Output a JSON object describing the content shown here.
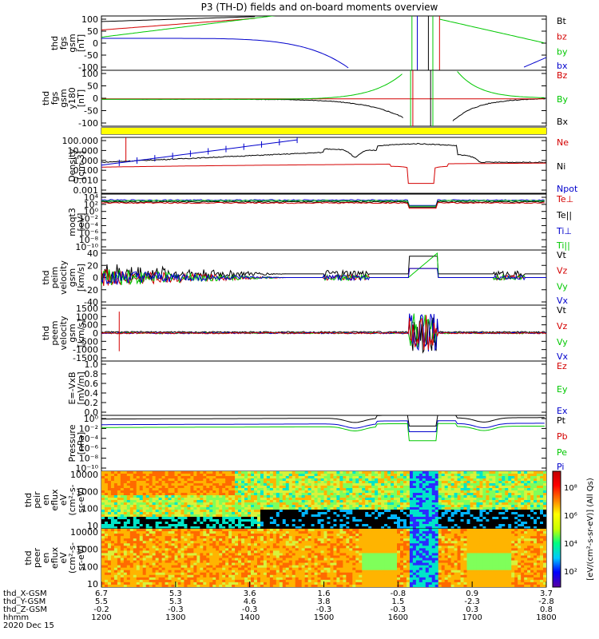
{
  "title": "P3 (TH-D) fields and on-board moments overview",
  "colors": {
    "black": "#000000",
    "red": "#d40000",
    "green": "#00c800",
    "blue": "#0000cc",
    "yellow": "#ffff00"
  },
  "chart_data": [
    {
      "type": "line",
      "panel_id": "fgs",
      "ylabel": [
        "thd",
        "fgs",
        "gsm",
        "[nT]"
      ],
      "yticks": [
        "100",
        "50",
        "0",
        "-50",
        "-100"
      ],
      "ylim": [
        -100,
        100
      ],
      "legend": [
        {
          "label": "Bt",
          "color": "#000000"
        },
        {
          "label": "bz",
          "color": "#d40000"
        },
        {
          "label": "by",
          "color": "#00c800"
        },
        {
          "label": "bx",
          "color": "#0000cc"
        }
      ]
    },
    {
      "type": "line",
      "panel_id": "fgs_y180",
      "ylabel": [
        "thd",
        "fgs",
        "gsm",
        "y180",
        "[nT]"
      ],
      "yticks": [
        "100",
        "50",
        "0",
        "-50",
        "-100"
      ],
      "ylim": [
        -120,
        120
      ],
      "legend": [
        {
          "label": "Bz",
          "color": "#d40000"
        },
        {
          "label": "By",
          "color": "#00c800"
        },
        {
          "label": "Bx",
          "color": "#000000"
        }
      ]
    },
    {
      "type": "bar",
      "panel_id": "mode_bar",
      "color": "#ffff00"
    },
    {
      "type": "line",
      "panel_id": "density",
      "ylabel": [
        "Density",
        "[cm-3]"
      ],
      "yticks": [
        "100.000",
        "10.000",
        "1.000",
        "0.100",
        "0.010",
        "0.001"
      ],
      "yscale": "log",
      "legend": [
        {
          "label": "Ne",
          "color": "#d40000"
        },
        {
          "label": "Ni",
          "color": "#000000"
        },
        {
          "label": "Npot",
          "color": "#0000cc"
        }
      ]
    },
    {
      "type": "line",
      "panel_id": "temperature",
      "ylabel": [
        "moqt3",
        "[eV]"
      ],
      "yticks": [
        "10⁴",
        "10²",
        "10⁰",
        "10⁻²",
        "10⁻⁴",
        "10⁻⁶",
        "10⁻⁸",
        "10⁻¹⁰"
      ],
      "yscale": "log",
      "legend": [
        {
          "label": "Te⊥",
          "color": "#d40000"
        },
        {
          "label": "Te||",
          "color": "#000000"
        },
        {
          "label": "Ti⊥",
          "color": "#0000cc"
        },
        {
          "label": "Ti||",
          "color": "#00c800"
        }
      ]
    },
    {
      "type": "line",
      "panel_id": "peim_velocity",
      "ylabel": [
        "thd",
        "peim",
        "velocity",
        "gsm",
        "[km/s]"
      ],
      "yticks": [
        "40",
        "20",
        "0",
        "-20",
        "-40"
      ],
      "ylim": [
        -40,
        40
      ],
      "legend": [
        {
          "label": "Vt",
          "color": "#000000"
        },
        {
          "label": "Vz",
          "color": "#d40000"
        },
        {
          "label": "Vy",
          "color": "#00c800"
        },
        {
          "label": "Vx",
          "color": "#0000cc"
        }
      ]
    },
    {
      "type": "line",
      "panel_id": "peem_velocity",
      "ylabel": [
        "thd",
        "peem",
        "velocity",
        "gsm",
        "[km/s]"
      ],
      "yticks": [
        "1500",
        "1000",
        "500",
        "0",
        "-500",
        "-1000",
        "-1500"
      ],
      "ylim": [
        -1500,
        1500
      ],
      "legend": [
        {
          "label": "Vt",
          "color": "#000000"
        },
        {
          "label": "Vz",
          "color": "#d40000"
        },
        {
          "label": "Vy",
          "color": "#00c800"
        },
        {
          "label": "Vx",
          "color": "#0000cc"
        }
      ]
    },
    {
      "type": "line",
      "panel_id": "efield",
      "ylabel": [
        "E=-VxB",
        "[mV/m]"
      ],
      "yticks": [
        "1.0",
        "0.8",
        "0.6",
        "0.4",
        "0.2",
        "0.0"
      ],
      "ylim": [
        0,
        1
      ],
      "legend": [
        {
          "label": "Ez",
          "color": "#d40000"
        },
        {
          "label": "Ey",
          "color": "#00c800"
        },
        {
          "label": "Ex",
          "color": "#0000cc"
        }
      ]
    },
    {
      "type": "line",
      "panel_id": "pressure",
      "ylabel": [
        "Pressure",
        "[nPa]"
      ],
      "yticks": [
        "10⁰",
        "10⁻²",
        "10⁻⁴",
        "10⁻⁶",
        "10⁻⁸",
        "10⁻¹⁰"
      ],
      "yscale": "log",
      "legend": [
        {
          "label": "Pt",
          "color": "#000000"
        },
        {
          "label": "Pb",
          "color": "#d40000"
        },
        {
          "label": "Pe",
          "color": "#00c800"
        },
        {
          "label": "Pi",
          "color": "#0000cc"
        }
      ]
    },
    {
      "type": "heatmap",
      "panel_id": "peir_spec",
      "ylabel": [
        "thd",
        "peir",
        "en",
        "eflux",
        "eV",
        "(cm²-s-",
        "sr-eV)"
      ],
      "yticks": [
        "10000",
        "1000",
        "100",
        "10"
      ],
      "yscale": "log"
    },
    {
      "type": "heatmap",
      "panel_id": "peer_spec",
      "ylabel": [
        "thd",
        "peer",
        "en",
        "eflux",
        "eV",
        "(cm²-s-",
        "sr-eV)"
      ],
      "yticks": [
        "10000",
        "1000",
        "100",
        "10"
      ],
      "yscale": "log"
    }
  ],
  "colorbar": {
    "label": "[eV/(cm²-s-sr-eV)] (All Qs)",
    "ticks": [
      "10⁸",
      "10⁶",
      "10⁴",
      "10²"
    ]
  },
  "x_axis": {
    "ticks": [
      "1200",
      "1300",
      "1400",
      "1500",
      "1600",
      "1700",
      "1800"
    ],
    "rows": [
      {
        "label": "thd_X-GSM",
        "values": [
          "6.7",
          "5.3",
          "3.6",
          "1.6",
          "-0.8",
          "0.9",
          "3.7"
        ]
      },
      {
        "label": "thd_Y-GSM",
        "values": [
          "5.5",
          "5.3",
          "4.6",
          "3.8",
          "1.5",
          "-2.3",
          "-2.8"
        ]
      },
      {
        "label": "thd_Z-GSM",
        "values": [
          "-0.2",
          "-0.3",
          "-0.3",
          "-0.3",
          "-0.3",
          "0.3",
          "0.8"
        ]
      },
      {
        "label": "hhmm",
        "values": [
          "1200",
          "1300",
          "1400",
          "1500",
          "1600",
          "1700",
          "1800"
        ]
      }
    ],
    "date": "2020 Dec 15"
  }
}
